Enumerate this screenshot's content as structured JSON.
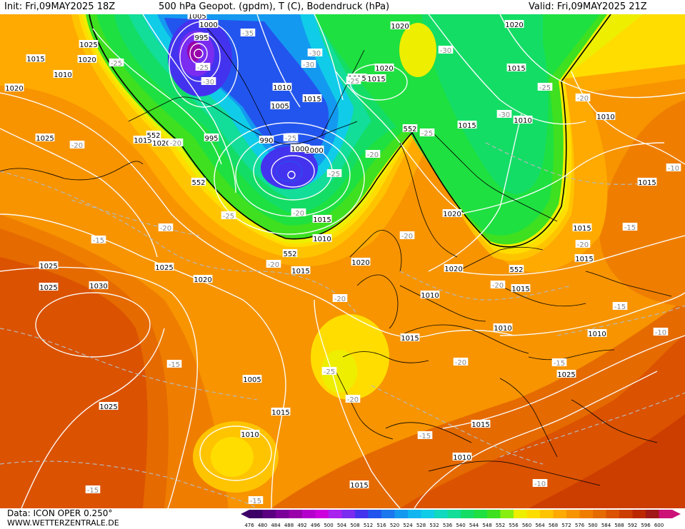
{
  "header": {
    "init": "Init: Fri,09MAY2025 18Z",
    "title": "500 hPa Geopot. (gpdm), T (C), Bodendruck (hPa)",
    "valid": "Valid: Fri,09MAY2025 21Z"
  },
  "footer": {
    "model": "Data: ICON OPER 0.250°",
    "site": "WWW.WETTERZENTRALE.DE"
  },
  "colorbar": {
    "ticks": [
      "476",
      "480",
      "484",
      "488",
      "492",
      "496",
      "500",
      "504",
      "508",
      "512",
      "516",
      "520",
      "524",
      "528",
      "532",
      "536",
      "540",
      "544",
      "548",
      "552",
      "556",
      "560",
      "564",
      "568",
      "572",
      "576",
      "580",
      "584",
      "588",
      "592",
      "596",
      "600"
    ],
    "colors": [
      "#3d0066",
      "#5a0080",
      "#7a0099",
      "#9900aa",
      "#b300cc",
      "#cc00dd",
      "#aa22ee",
      "#7a2cf0",
      "#4433ee",
      "#2255ee",
      "#1a77ee",
      "#1499f0",
      "#11b5f0",
      "#10cce8",
      "#10d9c0",
      "#12dd99",
      "#14dd66",
      "#1ee040",
      "#3ee020",
      "#88ee10",
      "#eeee00",
      "#ffdd00",
      "#ffc400",
      "#ffaa00",
      "#f79400",
      "#ef7e00",
      "#e56a00",
      "#db5200",
      "#cc3d00",
      "#bb2800",
      "#a01818",
      "#cc1177"
    ]
  },
  "map": {
    "isobar_labels": [
      "1005",
      "1000",
      "995",
      "1025",
      "1020",
      "1015",
      "1010",
      "1020",
      "1015",
      "1025",
      "1030",
      "1025",
      "1020",
      "1025",
      "1025",
      "1015",
      "1010",
      "1005",
      "1000",
      "995",
      "990",
      "1000",
      "1005",
      "1010",
      "1015",
      "1015",
      "1020",
      "1015",
      "1020",
      "1020",
      "1015",
      "1010",
      "1015",
      "1010",
      "1015",
      "1015",
      "1015",
      "1015",
      "1010",
      "1010",
      "1025",
      "1015",
      "1010",
      "1015",
      "1025",
      "1020",
      "1020",
      "1015",
      "1020",
      "1010",
      "1015",
      "1010",
      "1015",
      "1020"
    ],
    "temp_labels": [
      "-35",
      "-30",
      "-25",
      "-25",
      "-30",
      "-30",
      "-25",
      "-30",
      "-25",
      "-20",
      "-20",
      "-25",
      "-25",
      "-20",
      "-25",
      "-30",
      "-20",
      "-20",
      "-25",
      "-20",
      "-20",
      "-20",
      "-20",
      "-15",
      "-25",
      "-20",
      "-20",
      "-15",
      "-15",
      "-15",
      "-15",
      "-20",
      "-15",
      "-10",
      "-10",
      "-10",
      "-15",
      "-15",
      "-20"
    ],
    "geopot_labels": [
      "552",
      "552",
      "552",
      "552",
      "552"
    ]
  }
}
